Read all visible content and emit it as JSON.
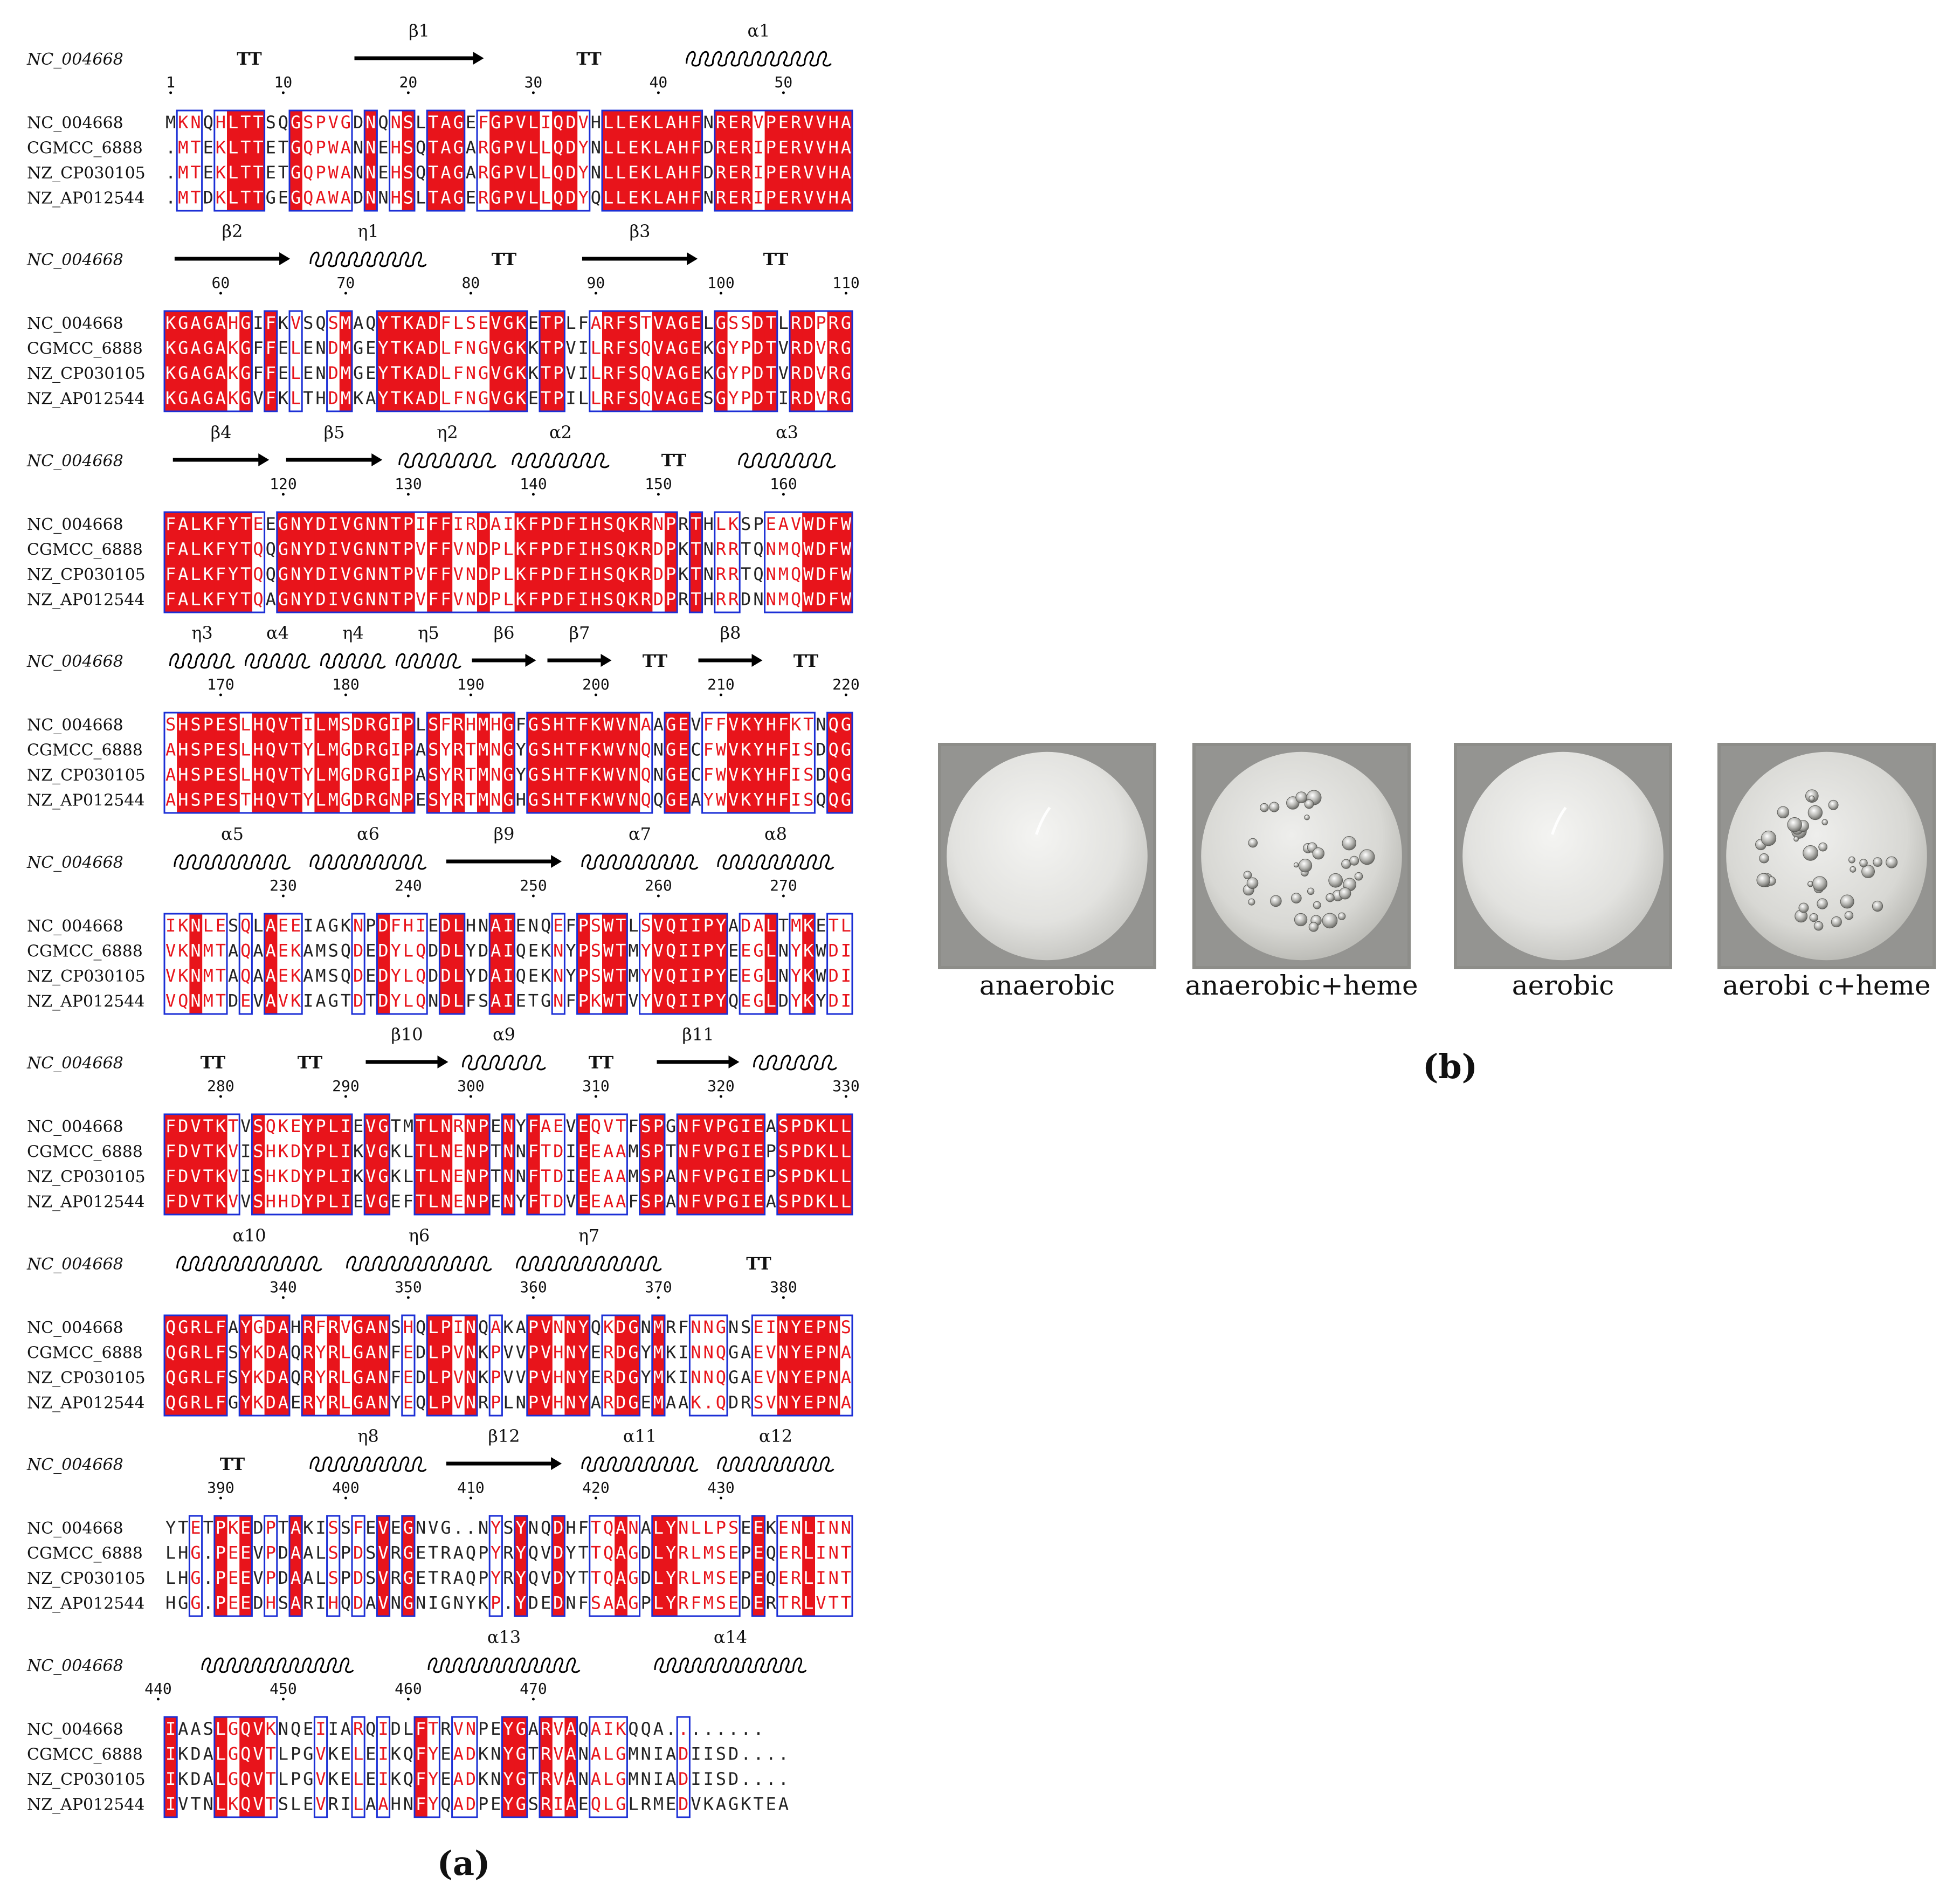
{
  "figure": {
    "panel_a": {
      "label": "(a)",
      "reference": "NC_004668",
      "sequence_names": [
        "NC_004668",
        "CGMCC_6888",
        "NZ_CP030105",
        "NZ_AP012544"
      ],
      "blocks": [
        {
          "start": 1,
          "ticks": [
            "1",
            "10",
            "20",
            "30",
            "40",
            "50"
          ],
          "ss": [
            {
              "type": "TT",
              "label": ""
            },
            {
              "type": "strand",
              "label": "β1"
            },
            {
              "type": "TT",
              "label": ""
            },
            {
              "type": "helix",
              "label": "α1"
            }
          ],
          "rows": [
            "MKNQHLTTSQGSPVGDNQNSLTAGEFGPVLIQDVHLLEKLAHFNRERVPERVVHA",
            ".MTEKLTTETGQPWANNEHSQTAGARGPVLLQDYNLLEKLAHFDRERIPERVVHA",
            ".MTEKLTTETGQPWANNEHSQTAGARGPVLLQDYNLLEKLAHFDRERIPERVVHA",
            ".MTDKLTTGEGQAWADNNHSLTAGERGPVLLQDYQLLEKLAHFNRERIPERVVHA"
          ]
        },
        {
          "start": 56,
          "ticks": [
            "60",
            "70",
            "80",
            "90",
            "100",
            "110"
          ],
          "ss": [
            {
              "type": "strand",
              "label": "β2"
            },
            {
              "type": "helix",
              "label": "η1"
            },
            {
              "type": "TT",
              "label": ""
            },
            {
              "type": "strand",
              "label": "β3"
            },
            {
              "type": "TT",
              "label": ""
            }
          ],
          "rows": [
            "KGAGAHGIFKVSQSMAQYTKADFLSEVGKETPLFARFSTVAGELGSSDTLRDPRG",
            "KGAGAKGFFELENDMGEYTKADLFNGVGKKTPVILRFSQVAGEKGYPDTVRDVRG",
            "KGAGAKGFFELENDMGEYTKADLFNGVGKKTPVILRFSQVAGEKGYPDTVRDVRG",
            "KGAGAKGVFKLTHDMKAYTKADLFNGVGKETPILLRFSQVAGESGYPDTIRDVRG"
          ]
        },
        {
          "start": 111,
          "ticks": [
            "120",
            "130",
            "140",
            "150",
            "160"
          ],
          "ss": [
            {
              "type": "strand",
              "label": "β4"
            },
            {
              "type": "strand",
              "label": "β5"
            },
            {
              "type": "helix",
              "label": "η2"
            },
            {
              "type": "helix",
              "label": "α2"
            },
            {
              "type": "TT",
              "label": ""
            },
            {
              "type": "helix",
              "label": "α3"
            }
          ],
          "rows": [
            "FALKFYTEEGNYDIVGNNTPIFFIRDAIKFPDFIHSQKRNPRTHLKSPEAVWDFW",
            "FALKFYTQQGNYDIVGNNTPVFFVNDPLKFPDFIHSQKRDPKTNRRTQNMQWDFW",
            "FALKFYTQQGNYDIVGNNTPVFFVNDPLKFPDFIHSQKRDPKTNRRTQNMQWDFW",
            "FALKFYTQAGNYDIVGNNTPVFFVNDPLKFPDFIHSQKRDPRTHRRDNNMQWDFW"
          ]
        },
        {
          "start": 166,
          "ticks": [
            "170",
            "180",
            "190",
            "200",
            "210",
            "220"
          ],
          "ss": [
            {
              "type": "helix",
              "label": "η3"
            },
            {
              "type": "helix",
              "label": "α4"
            },
            {
              "type": "helix",
              "label": "η4"
            },
            {
              "type": "helix",
              "label": "η5"
            },
            {
              "type": "strand",
              "label": "β6"
            },
            {
              "type": "strand",
              "label": "β7"
            },
            {
              "type": "TT",
              "label": ""
            },
            {
              "type": "strand",
              "label": "β8"
            },
            {
              "type": "TT",
              "label": ""
            }
          ],
          "rows": [
            "SHSPESLHQVTILMSDRGIPLSFRHMHGFGSHTFKWVNAAGEVFFVKYHFKTNQG",
            "AHSPESLHQVTYLMGDRGIPASYRTMNGYGSHTFKWVNQNGECFWVKYHFISDQG",
            "AHSPESLHQVTYLMGDRGIPASYRTMNGYGSHTFKWVNQNGECFWVKYHFISDQG",
            "AHSPESTHQVTYLMGDRGNPESYRTMNGHGSHTFKWVNQQGEAYWVKYHFISQQG"
          ]
        },
        {
          "start": 221,
          "ticks": [
            "230",
            "240",
            "250",
            "260",
            "270"
          ],
          "ss": [
            {
              "type": "helix",
              "label": "α5"
            },
            {
              "type": "helix",
              "label": "α6"
            },
            {
              "type": "strand",
              "label": "β9"
            },
            {
              "type": "helix",
              "label": "α7"
            },
            {
              "type": "helix",
              "label": "α8"
            }
          ],
          "rows": [
            "IKNLESQLAEEIAGKNPDFHIEDLHNAIENQEFPSWTLSVQIIPYADALTMKETL",
            "VKNMTAQAAEKAMSQDEDYLQDDLYDAIQEKNYPSWTMYVQIIPYEEGLNYKWDI",
            "VKNMTAQAAEKAMSQDEDYLQDDLYDAIQEKNYPSWTMYVQIIPYEEGLNYKWDI",
            "VQNMTDEVAVKIAGTDTDYLQNDLFSAIETGNFPKWTVYVQIIPYQEGLDYKYDI"
          ]
        },
        {
          "start": 276,
          "ticks": [
            "280",
            "290",
            "300",
            "310",
            "320",
            "330"
          ],
          "ss": [
            {
              "type": "TT",
              "label": ""
            },
            {
              "type": "TT",
              "label": ""
            },
            {
              "type": "strand",
              "label": "β10"
            },
            {
              "type": "helix",
              "label": "α9"
            },
            {
              "type": "TT",
              "label": ""
            },
            {
              "type": "strand",
              "label": "β11"
            },
            {
              "type": "helix",
              "label": ""
            }
          ],
          "rows": [
            "FDVTKTVSQKEYPLIEVGTMTLNRNPENYFAEVEQVTFSPGNFVPGIEASPDKLL",
            "FDVTKVISHKDYPLIKVGKLTLNENPTNNFTDIEEAAMSPTNFVPGIEPSPDKLL",
            "FDVTKVISHKDYPLIKVGKLTLNENPTNNFTDIEEAAMSPANFVPGIEPSPDKLL",
            "FDVTKVVSHHDYPLIEVGEFTLNENPENYFTDVEEAAFSPANFVPGIEASPDKLL"
          ]
        },
        {
          "start": 331,
          "ticks": [
            "340",
            "350",
            "360",
            "370",
            "380"
          ],
          "ss": [
            {
              "type": "helix",
              "label": "α10"
            },
            {
              "type": "helix",
              "label": "η6"
            },
            {
              "type": "helix",
              "label": "η7"
            },
            {
              "type": "TT",
              "label": ""
            }
          ],
          "rows": [
            "QGRLFAYGDAHRFRVGANSHQLPINQAKAPVNNYQKDGNMRFNNGNSEINYEPNS",
            "QGRLFSYKDAQRYRLGANFEDLPVNKPVVPVHNYERDGYMKINNQGAEVNYEPNA",
            "QGRLFSYKDAQRYRLGANFEDLPVNKPVVPVHNYERDGYMKINNQGAEVNYEPNA",
            "QGRLFGYKDAERYRLGANYEQLPVNRPLNPVHNYARDGEMAAK.QDRSVNYEPNA"
          ]
        },
        {
          "start": 386,
          "ticks": [
            "390",
            "400",
            "410",
            "420",
            "430"
          ],
          "ss": [
            {
              "type": "TT",
              "label": ""
            },
            {
              "type": "helix",
              "label": "η8"
            },
            {
              "type": "strand",
              "label": "β12"
            },
            {
              "type": "helix",
              "label": "α11"
            },
            {
              "type": "helix",
              "label": "α12"
            }
          ],
          "rows": [
            "YTETPKEDPTAKISSFEVEGNVG..NYSYNQDHFTQANALYNLLPSEEKENLINN",
            "LHG.PEEVPDAALSPDSVRGETRAQPYRYQVDYTTQAGDLYRLMSEPEQERLINT",
            "LHG.PEEVPDAALSPDSVRGETRAQPYRYQVDYTTQAGDLYRLMSEPEQERLINT",
            "HGG.PEEDHSARIHQDAVNGNIGNYKP.YDEDNFSAAGPLYRFMSEDERTRLVTT"
          ]
        },
        {
          "start": 441,
          "ticks": [
            "440",
            "450",
            "460",
            "470"
          ],
          "ss": [
            {
              "type": "helix",
              "label": ""
            },
            {
              "type": "helix",
              "label": "α13"
            },
            {
              "type": "helix",
              "label": "α14"
            }
          ],
          "rows": [
            "IAASLGQVKNQEIIARQIDLFTRVNPEYGARVAQAIKQQA........",
            "IKDALGQVTLPGVKELEIKQFYEADKNYGTRVANALGMNIADIISD....",
            "IKDALGQVTLPGVKELEIKQFYEADKNYGTRVANALGMNIADIISD....",
            "IVTNLKQVTSLEVRILAAHNFYQADPEYGSRIAEQLGLRMEDVKAGKTEA"
          ]
        }
      ]
    },
    "panel_b": {
      "label": "(b)",
      "photos": [
        {
          "caption": "anaerobic",
          "bubbles": false
        },
        {
          "caption": "anaerobic+heme",
          "bubbles": true
        },
        {
          "caption": "aerobic",
          "bubbles": false
        },
        {
          "caption": "aerobi c+heme",
          "bubbles": true
        }
      ]
    },
    "colors": {
      "identical_bg": "#e8141b",
      "similar_text": "#e8141b",
      "box_border": "#1b2fd6",
      "text": "#111111"
    }
  }
}
